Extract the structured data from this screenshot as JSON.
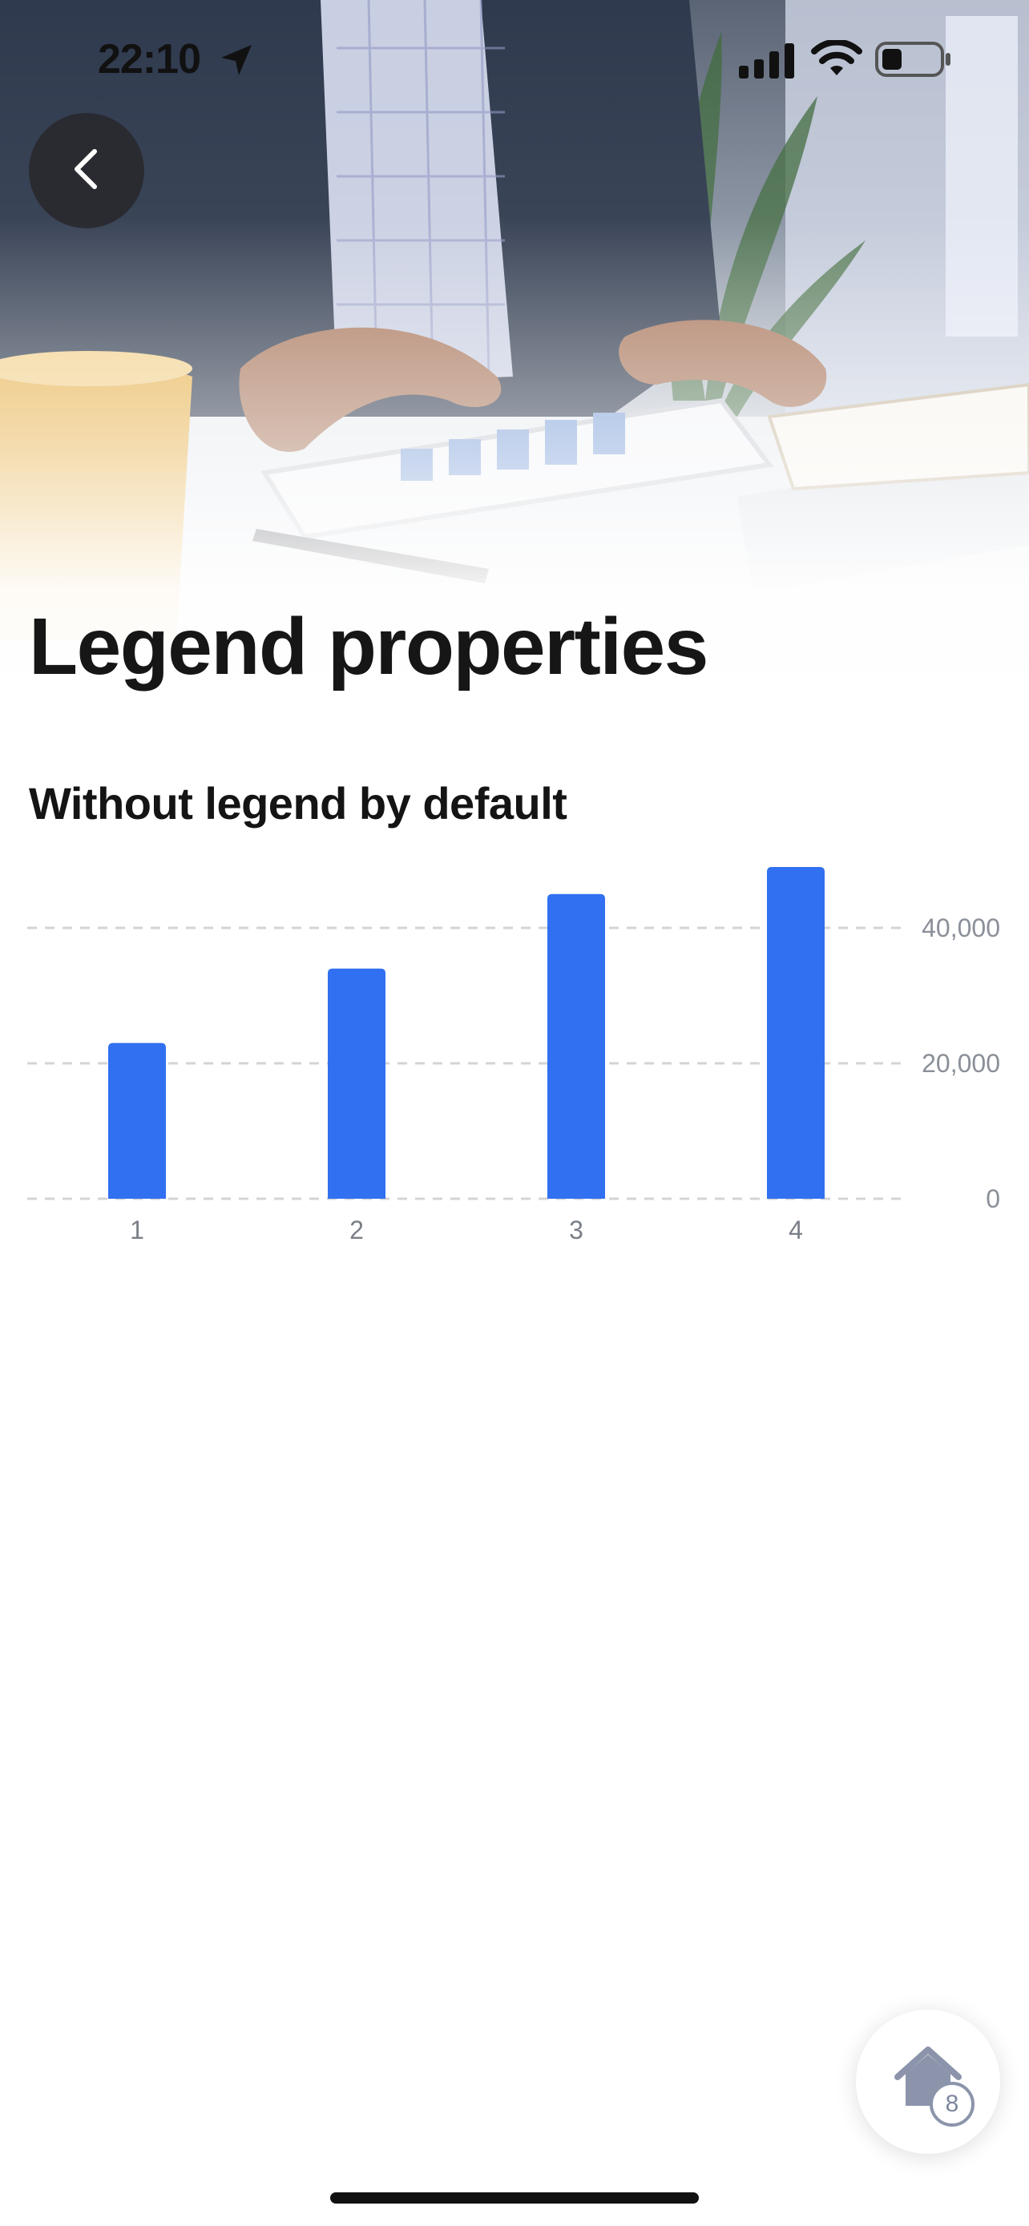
{
  "status_bar": {
    "time": "22:10"
  },
  "header": {
    "title": "Legend properties"
  },
  "section": {
    "title": "Without legend by default"
  },
  "colors": {
    "bar": "#3170F0",
    "grid": "#d4d4d4",
    "fab_icon": "#8b94ab"
  },
  "icons": {
    "back": "chevron-left-icon",
    "location": "location-arrow-icon",
    "signal": "cellular-signal-icon",
    "wifi": "wifi-icon",
    "battery": "battery-icon",
    "home": "home-icon"
  },
  "fab": {
    "badge": "8"
  },
  "chart_data": {
    "type": "bar",
    "categories": [
      "1",
      "2",
      "3",
      "4"
    ],
    "values": [
      23000,
      34000,
      45000,
      49000
    ],
    "title": "",
    "xlabel": "",
    "ylabel": "",
    "ylim": [
      0,
      50000
    ],
    "y_ticks": [
      0,
      20000,
      40000
    ],
    "y_tick_labels": [
      "0",
      "20,000",
      "40,000"
    ],
    "y_axis_position": "right",
    "grid": true,
    "legend": false
  }
}
